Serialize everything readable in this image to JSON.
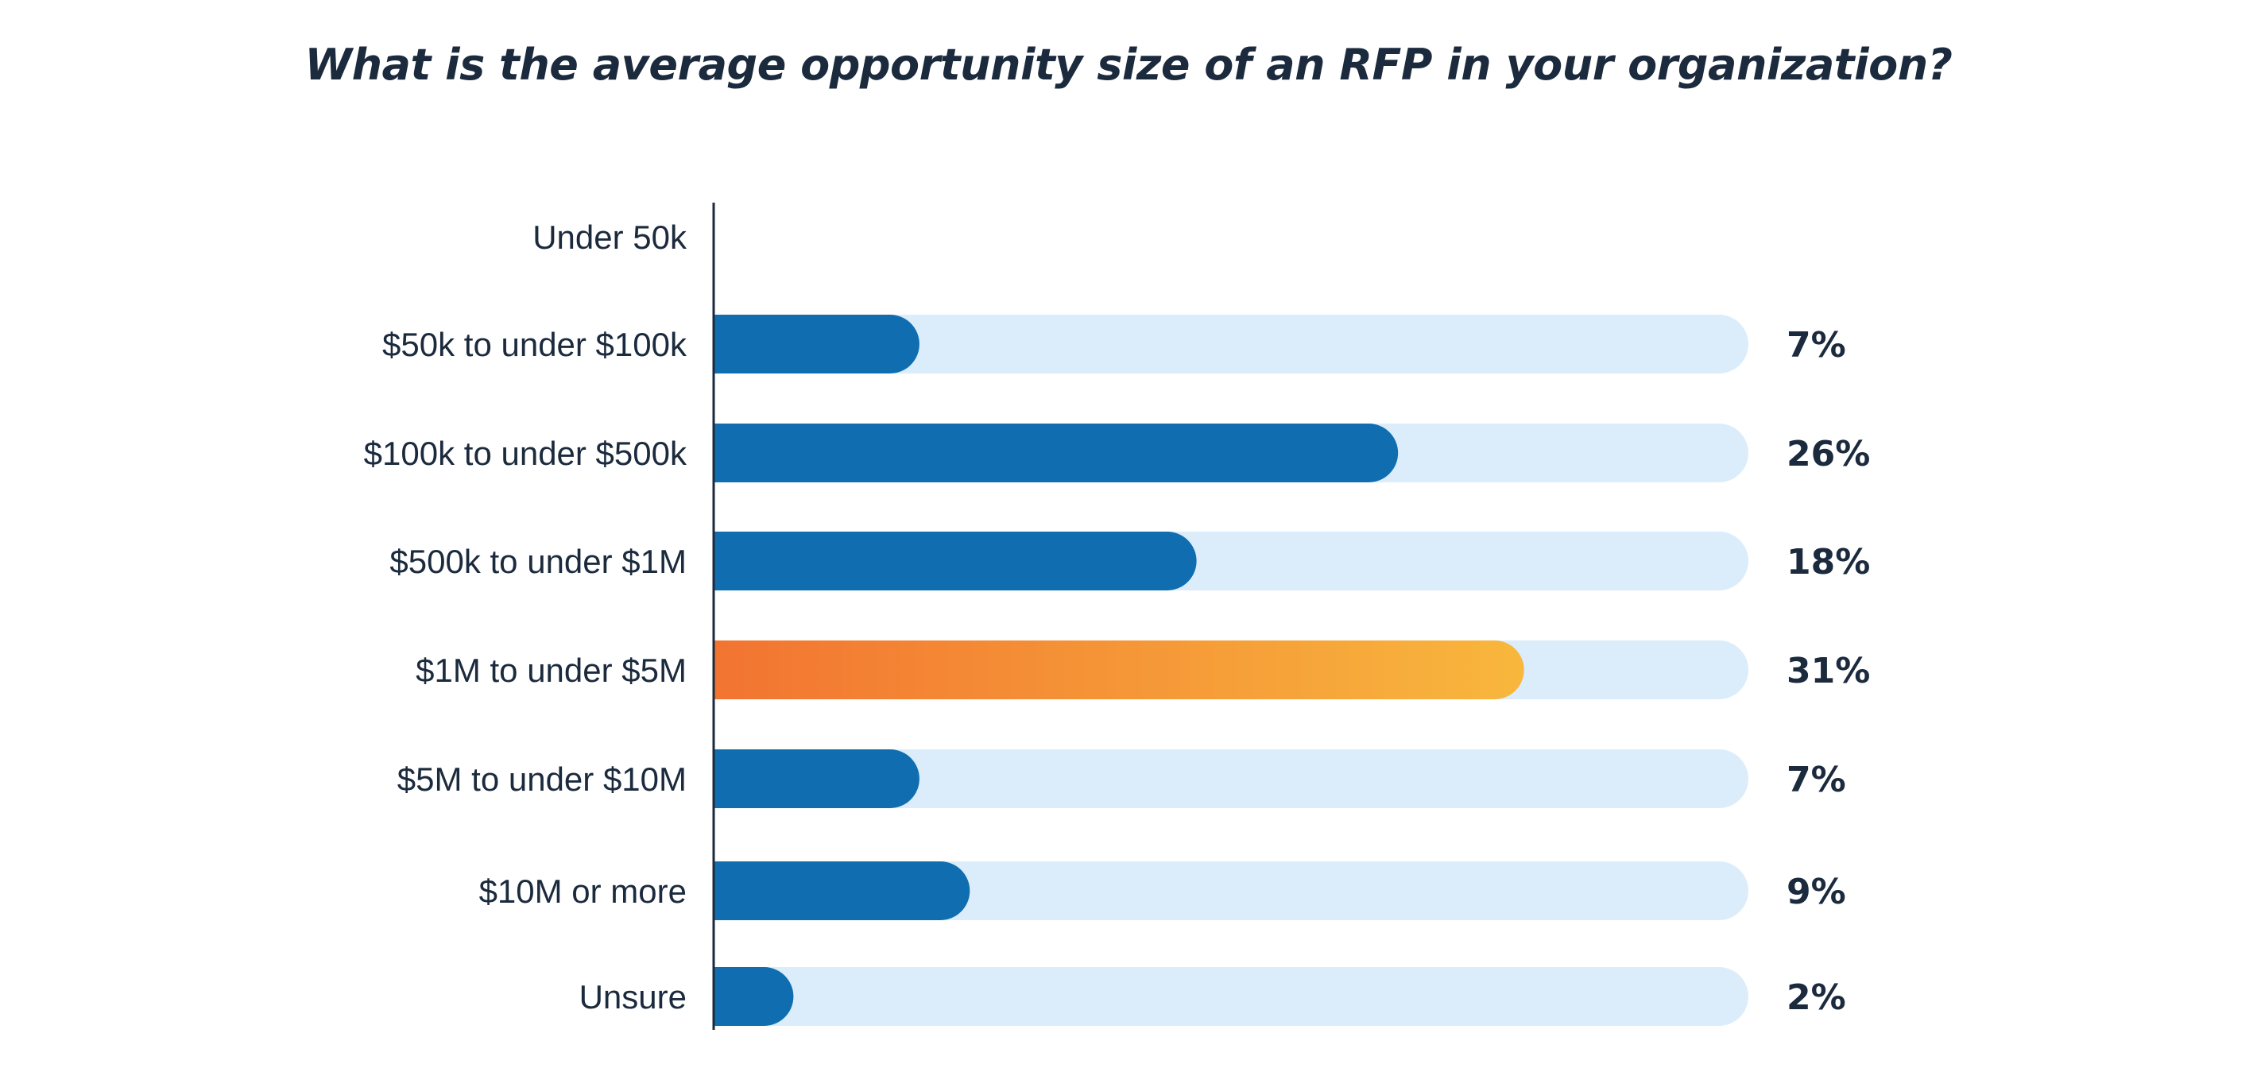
{
  "chart_data": {
    "type": "bar",
    "orientation": "horizontal",
    "title": "What is the average opportunity size of an RFP in your organization?",
    "categories": [
      "Under 50k",
      "$50k to under $100k",
      "$100k to under $500k",
      "$500k to under $1M",
      "$1M to under $5M",
      "$5M to under $10M",
      "$10M or more",
      "Unsure"
    ],
    "values": [
      0,
      7,
      26,
      18,
      31,
      7,
      9,
      2
    ],
    "value_labels": [
      "",
      "7%",
      "26%",
      "18%",
      "31%",
      "7%",
      "9%",
      "2%"
    ],
    "unit": "%",
    "highlight_index": 4,
    "xlim": [
      0,
      40
    ],
    "grid": false,
    "legend": "none"
  },
  "colors": {
    "bar": "#106eb0",
    "track": "#dbecfb",
    "highlight_start": "#f27431",
    "highlight_end": "#f8b73d",
    "axis": "#1b2a3d",
    "text": "#1b2a3d"
  }
}
